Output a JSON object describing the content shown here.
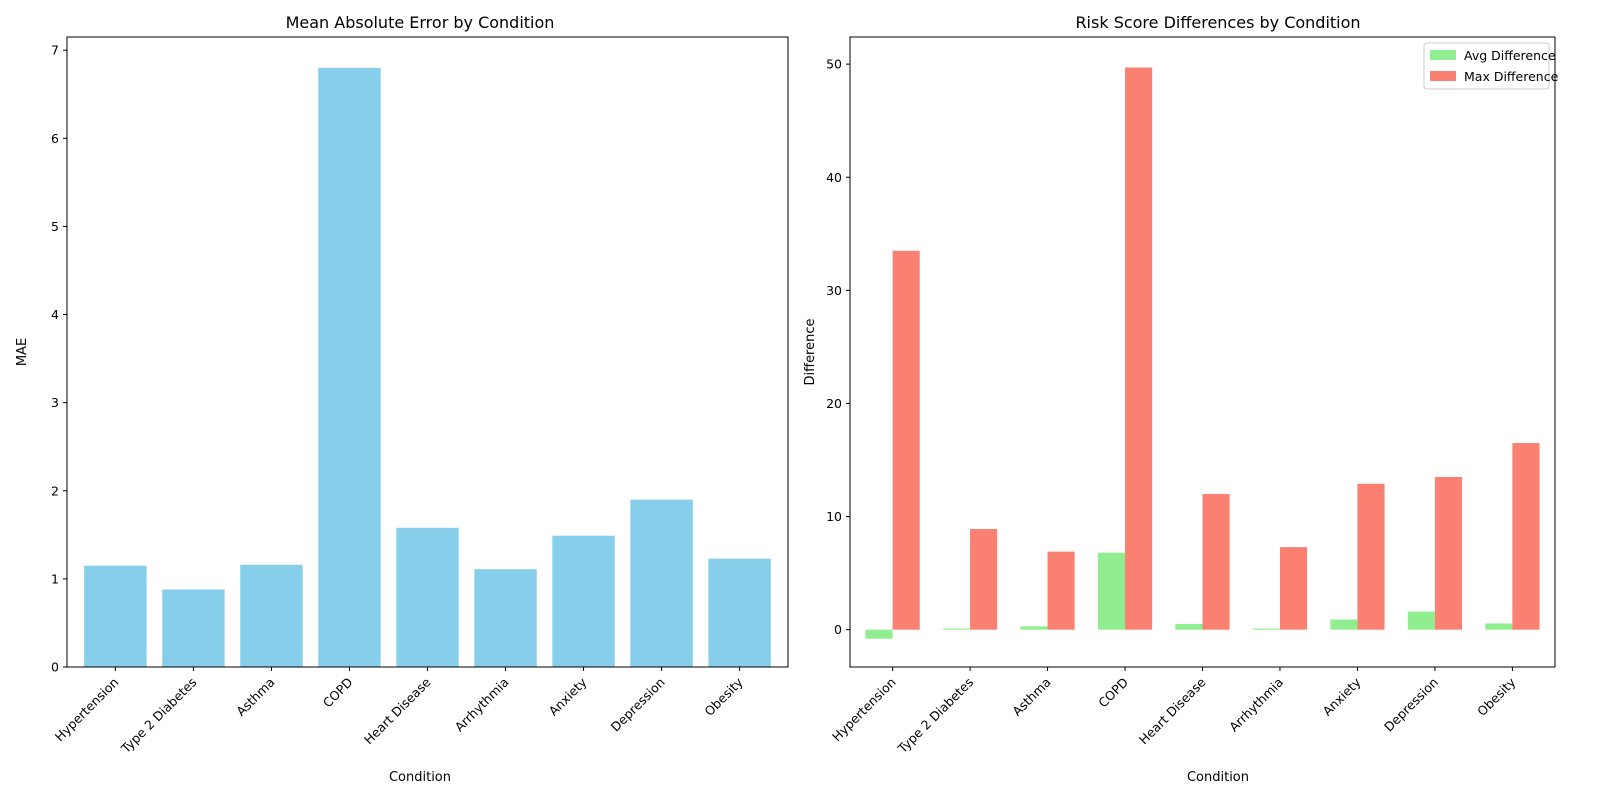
{
  "chart_data": [
    {
      "type": "bar",
      "title": "Mean Absolute Error by Condition",
      "xlabel": "Condition",
      "ylabel": "MAE",
      "categories": [
        "Hypertension",
        "Type 2 Diabetes",
        "Asthma",
        "COPD",
        "Heart Disease",
        "Arrhythmia",
        "Anxiety",
        "Depression",
        "Obesity"
      ],
      "values": [
        1.15,
        0.88,
        1.16,
        6.8,
        1.58,
        1.11,
        1.49,
        1.9,
        1.23
      ],
      "ylim": [
        0,
        7.15
      ],
      "yticks": [
        0,
        1,
        2,
        3,
        4,
        5,
        6,
        7
      ],
      "color": "#87ceeb",
      "grid": false
    },
    {
      "type": "bar",
      "title": "Risk Score Differences by Condition",
      "xlabel": "Condition",
      "ylabel": "Difference",
      "categories": [
        "Hypertension",
        "Type 2 Diabetes",
        "Asthma",
        "COPD",
        "Heart Disease",
        "Arrhythmia",
        "Anxiety",
        "Depression",
        "Obesity"
      ],
      "series": [
        {
          "name": "Avg Difference",
          "color": "#90ee90",
          "values": [
            -0.8,
            0.1,
            0.3,
            6.8,
            0.5,
            0.1,
            0.9,
            1.6,
            0.55
          ]
        },
        {
          "name": "Max Difference",
          "color": "#fa8072",
          "values": [
            33.5,
            8.9,
            6.9,
            49.7,
            12.0,
            7.3,
            12.9,
            13.5,
            16.5
          ]
        }
      ],
      "ylim": [
        -3.3,
        52.4
      ],
      "yticks": [
        0,
        10,
        20,
        30,
        40,
        50
      ],
      "legend": "top-right",
      "grid": false
    }
  ]
}
